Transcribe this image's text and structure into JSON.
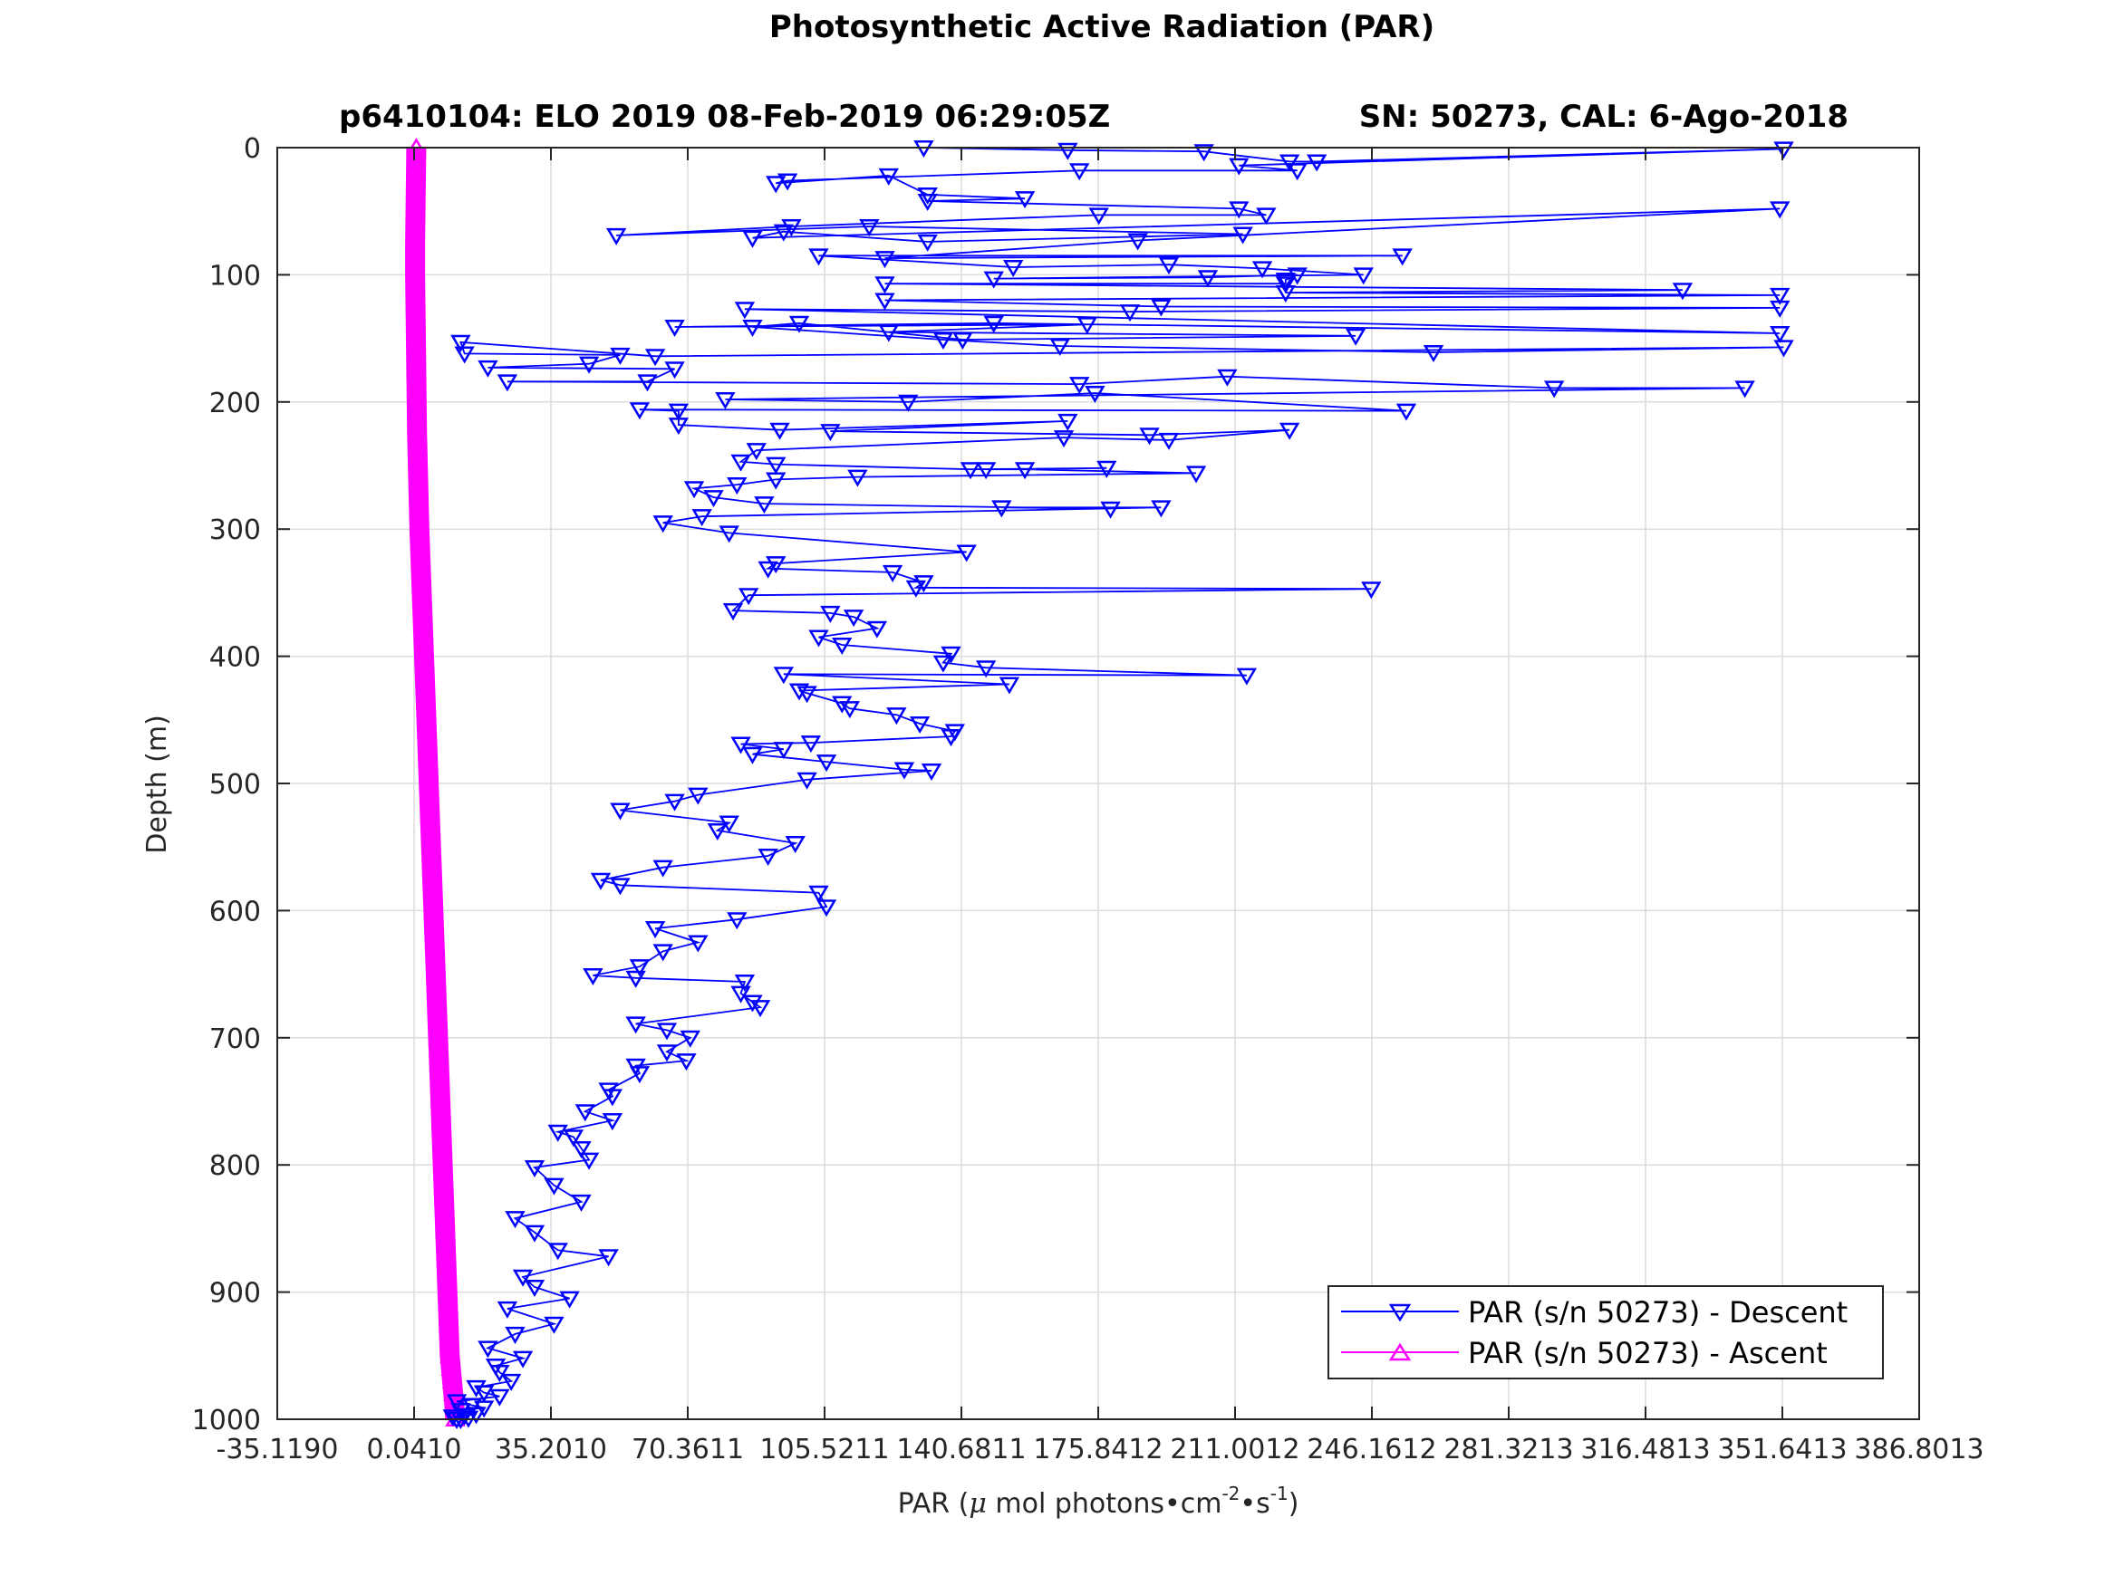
{
  "figure": {
    "suptitle": "Photosynthetic Active Radiation (PAR)",
    "title_left": "p6410104: ELO 2019 08-Feb-2019 06:29:05Z",
    "title_right": "SN: 50273, CAL: 6-Ago-2018",
    "background": "#ffffff"
  },
  "chart_data": {
    "type": "line",
    "xlabel": "PAR (μ mol photons•cm⁻²•s⁻¹)",
    "xlabel_parts": {
      "prefix": "PAR (",
      "mu": "μ",
      "unit": " mol photons•cm",
      "exp1": "-2",
      "mid": "•s",
      "exp2": "-1",
      "suffix": ")"
    },
    "ylabel": "Depth (m)",
    "xlim": [
      -35.119,
      386.8013
    ],
    "ylim": [
      0,
      1000
    ],
    "y_reversed": true,
    "x_ticks": [
      -35.119,
      0.041,
      35.201,
      70.3611,
      105.5211,
      140.6811,
      175.8412,
      211.0012,
      246.1612,
      281.3213,
      316.4813,
      351.6413,
      386.8013
    ],
    "x_tick_labels": [
      "-35.1190",
      "0.0410",
      "35.2010",
      "70.3611",
      "105.5211",
      "140.6811",
      "175.8412",
      "211.0012",
      "246.1612",
      "281.3213",
      "316.4813",
      "351.6413",
      "386.8013"
    ],
    "y_ticks": [
      0,
      100,
      200,
      300,
      400,
      500,
      600,
      700,
      800,
      900,
      1000
    ],
    "y_tick_labels": [
      "0",
      "100",
      "200",
      "300",
      "400",
      "500",
      "600",
      "700",
      "800",
      "900",
      "1000"
    ],
    "grid": true,
    "legend_position": "bottom-right",
    "series": [
      {
        "name": "PAR (s/n 50273) - Descent",
        "color": "#0000ff",
        "marker": "triangle-down",
        "x": [
          131,
          168,
          203,
          225,
          232,
          352,
          212,
          227,
          171,
          96,
          93,
          122,
          132,
          157,
          132,
          212,
          219,
          176,
          97,
          52,
          117,
          213,
          132,
          95,
          87,
          351,
          186,
          121,
          254,
          104,
          154,
          194,
          218,
          244,
          149,
          204,
          227,
          224,
          224,
          121,
          326,
          224,
          351,
          121,
          192,
          351,
          184,
          85,
          351,
          149,
          67,
          173,
          122,
          242,
          141,
          99,
          87,
          136,
          166,
          262,
          352,
          62,
          12,
          13,
          53,
          45,
          19,
          67,
          60,
          24,
          171,
          209,
          293,
          342,
          80,
          127,
          175,
          255,
          58,
          68,
          68,
          94,
          168,
          107,
          189,
          225,
          194,
          167,
          88,
          84,
          93,
          143,
          178,
          147,
          157,
          201,
          114,
          93,
          83,
          72,
          77,
          90,
          179,
          151,
          192,
          74,
          64,
          81,
          142,
          93,
          91,
          123,
          131,
          129,
          246,
          86,
          82,
          107,
          113,
          119,
          104,
          110,
          138,
          136,
          147,
          214,
          95,
          153,
          99,
          101,
          110,
          112,
          124,
          130,
          139,
          138,
          102,
          84,
          95,
          87,
          106,
          126,
          133,
          101,
          73,
          67,
          53,
          81,
          78,
          98,
          91,
          64,
          48,
          53,
          104,
          106,
          83,
          62,
          73,
          64,
          58,
          46,
          57,
          85,
          84,
          87,
          89,
          57,
          65,
          71,
          65,
          70,
          57,
          58,
          50,
          51,
          44,
          51,
          37,
          41,
          43,
          45,
          31,
          36,
          43,
          26,
          31,
          37,
          50,
          28,
          31,
          40,
          24,
          36,
          26,
          19,
          28,
          21,
          22,
          25,
          16,
          18,
          22,
          11,
          15,
          18,
          12,
          16,
          13,
          10,
          14,
          11,
          12
        ],
        "y": [
          0,
          2,
          3,
          11,
          11,
          1,
          14,
          18,
          18,
          26,
          28,
          22,
          37,
          40,
          42,
          48,
          53,
          53,
          62,
          69,
          62,
          68,
          74,
          66,
          71,
          48,
          73,
          87,
          85,
          85,
          94,
          92,
          95,
          100,
          103,
          102,
          100,
          104,
          107,
          107,
          112,
          114,
          116,
          120,
          125,
          126,
          129,
          127,
          146,
          138,
          141,
          139,
          145,
          148,
          151,
          138,
          141,
          151,
          156,
          161,
          157,
          164,
          153,
          162,
          163,
          170,
          173,
          174,
          184,
          184,
          186,
          180,
          189,
          189,
          198,
          200,
          193,
          207,
          206,
          207,
          218,
          222,
          215,
          223,
          226,
          222,
          230,
          228,
          238,
          247,
          249,
          253,
          252,
          253,
          253,
          256,
          259,
          261,
          265,
          268,
          275,
          280,
          284,
          283,
          283,
          290,
          295,
          303,
          318,
          327,
          331,
          334,
          342,
          346,
          347,
          352,
          364,
          366,
          369,
          378,
          385,
          391,
          398,
          405,
          409,
          415,
          414,
          422,
          427,
          429,
          437,
          441,
          446,
          453,
          459,
          463,
          468,
          469,
          473,
          477,
          483,
          489,
          490,
          497,
          509,
          514,
          521,
          531,
          537,
          547,
          557,
          566,
          576,
          580,
          586,
          597,
          607,
          614,
          625,
          632,
          644,
          651,
          653,
          656,
          665,
          672,
          676,
          689,
          694,
          700,
          711,
          718,
          722,
          728,
          741,
          746,
          758,
          765,
          774,
          778,
          787,
          796,
          802,
          816,
          829,
          842,
          853,
          867,
          872,
          888,
          896,
          905,
          913,
          925,
          933,
          944,
          952,
          958,
          963,
          970,
          975,
          979,
          982,
          986,
          989,
          991,
          993,
          996,
          997,
          998,
          999,
          1000,
          1000
        ]
      },
      {
        "name": "PAR (s/n 50273) - Ascent",
        "color": "#ff00ff",
        "marker": "triangle-up",
        "x": [
          0.6,
          0.5,
          0.4,
          0.3,
          0.3,
          0.4,
          0.5,
          0.6,
          0.7,
          0.8,
          1.0,
          1.2,
          1.4,
          1.7,
          2.0,
          2.3,
          2.6,
          2.9,
          3.2,
          3.5,
          3.8,
          4.1,
          4.4,
          4.7,
          5.0,
          5.3,
          5.6,
          5.9,
          6.2,
          6.5,
          6.8,
          7.1,
          7.4,
          7.7,
          8.0,
          8.3,
          8.6,
          8.9,
          9.2,
          9.5,
          9.8,
          10.1,
          10.4,
          10.6
        ],
        "y": [
          0,
          25,
          50,
          75,
          100,
          125,
          150,
          175,
          200,
          225,
          250,
          275,
          300,
          325,
          350,
          375,
          400,
          425,
          450,
          475,
          500,
          525,
          550,
          575,
          600,
          625,
          650,
          675,
          700,
          725,
          750,
          775,
          800,
          825,
          850,
          875,
          900,
          925,
          950,
          960,
          970,
          980,
          990,
          1000
        ]
      }
    ]
  }
}
